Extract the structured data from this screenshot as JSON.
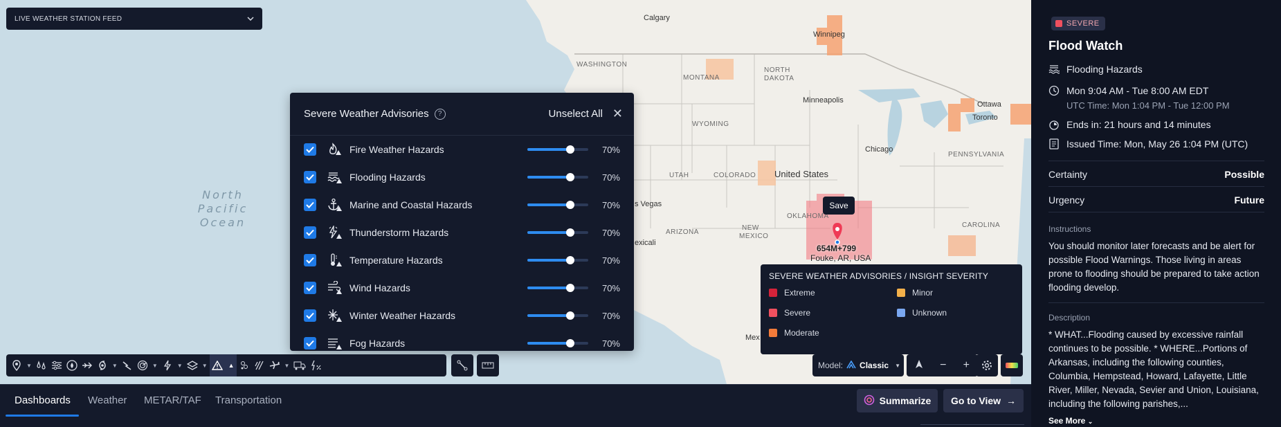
{
  "feed": {
    "label": "LIVE WEATHER STATION FEED"
  },
  "map": {
    "ocean_label": "North Pacific Ocean",
    "ocean_lines": [
      "North",
      "Pacific",
      "Ocean"
    ],
    "geo_labels": {
      "calgary": "Calgary",
      "winnipeg": "Winnipeg",
      "washington": "WASHINGTON",
      "montana": "MONTANA",
      "north_dakota": "NORTH",
      "dakota": "DAKOTA",
      "minneapolis": "Minneapolis",
      "ottawa": "Ottawa",
      "toronto": "Toronto",
      "wyoming": "WYOMING",
      "chicago": "Chicago",
      "pennsylvania": "PENNSYLVANIA",
      "utah": "UTAH",
      "colorado": "COLORADO",
      "united_states": "United States",
      "vegas": "s Vegas",
      "oklahoma": "OKLAHOMA",
      "arizona": "ARIZONA",
      "new_mexico": "NEW",
      "mexico_state": "MEXICO",
      "mexicali": "exicali",
      "carolina": "CAROLINA",
      "mex": "Mex"
    },
    "save_label": "Save",
    "pin_code": "654M+799",
    "pin_place": "Fouke, AR, USA"
  },
  "advisories": {
    "title": "Severe Weather Advisories",
    "unselect_label": "Unselect All",
    "items": [
      {
        "label": "Fire Weather Hazards",
        "value": 0.7,
        "pct": "70%",
        "icon": "fire-icon"
      },
      {
        "label": "Flooding Hazards",
        "value": 0.7,
        "pct": "70%",
        "icon": "flood-icon"
      },
      {
        "label": "Marine and Coastal Hazards",
        "value": 0.7,
        "pct": "70%",
        "icon": "anchor-icon"
      },
      {
        "label": "Thunderstorm Hazards",
        "value": 0.7,
        "pct": "70%",
        "icon": "lightning-icon"
      },
      {
        "label": "Temperature Hazards",
        "value": 0.7,
        "pct": "70%",
        "icon": "thermometer-icon"
      },
      {
        "label": "Wind Hazards",
        "value": 0.7,
        "pct": "70%",
        "icon": "wind-icon"
      },
      {
        "label": "Winter Weather Hazards",
        "value": 0.7,
        "pct": "70%",
        "icon": "snowflake-icon"
      },
      {
        "label": "Fog Hazards",
        "value": 0.7,
        "pct": "70%",
        "icon": "fog-icon"
      }
    ]
  },
  "legend": {
    "title": "SEVERE WEATHER ADVISORIES / INSIGHT SEVERITY",
    "items": [
      {
        "label": "Extreme",
        "color": "#d4233a"
      },
      {
        "label": "Minor",
        "color": "#f3b04a"
      },
      {
        "label": "Severe",
        "color": "#f0505f"
      },
      {
        "label": "Unknown",
        "color": "#7aa7f0"
      },
      {
        "label": "Moderate",
        "color": "#f37b3a"
      }
    ]
  },
  "model": {
    "label": "Model:",
    "value": "Classic"
  },
  "bottom": {
    "tabs": [
      "Dashboards",
      "Weather",
      "METAR/TAF",
      "Transportation"
    ],
    "summarize_label": "Summarize",
    "goto_label": "Go to View"
  },
  "detail": {
    "badge": "SEVERE",
    "title": "Flood Watch",
    "hazard": "Flooding Hazards",
    "time_range": "Mon 9:04 AM - Tue 8:00 AM EDT",
    "utc_time": "UTC Time: Mon 1:04 PM - Tue 12:00 PM",
    "ends_in": "Ends in: 21 hours and 14 minutes",
    "issued": "Issued Time: Mon, May 26 1:04 PM (UTC)",
    "certainty_label": "Certainty",
    "certainty_value": "Possible",
    "urgency_label": "Urgency",
    "urgency_value": "Future",
    "instructions_title": "Instructions",
    "instructions_text": "You should monitor later forecasts and be alert for possible Flood Warnings. Those living in areas prone to flooding should be prepared to take action flooding develop.",
    "description_title": "Description",
    "description_text": "* WHAT...Flooding caused by excessive rainfall continues to be possible. * WHERE...Portions of Arkansas, including the following counties, Columbia, Hempstead, Howard, Lafayette, Little River, Miller, Nevada, Sevier and Union, Louisiana, including the following parishes,...",
    "see_more": "See More"
  },
  "colors": {
    "accent": "#1f7ae6",
    "panel": "#141a2b",
    "severe": "#f0505f",
    "moderate": "#f37b3a"
  }
}
